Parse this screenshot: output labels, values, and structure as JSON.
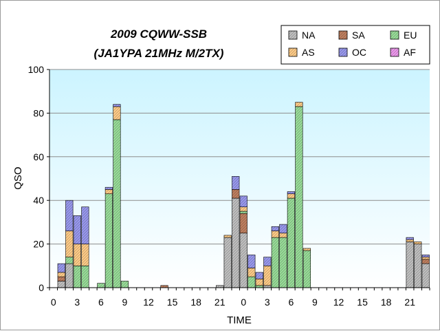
{
  "chart_data": {
    "type": "bar",
    "stacked": true,
    "title": "2009 CQWW-SSB",
    "subtitle": "(JA1YPA  21MHz  M/2TX)",
    "xlabel": "TIME",
    "ylabel": "QSO",
    "ylim": [
      0,
      100
    ],
    "yticks": [
      0,
      20,
      40,
      60,
      80,
      100
    ],
    "xtick_labels": [
      "0",
      "3",
      "6",
      "9",
      "12",
      "15",
      "18",
      "21",
      "0",
      "3",
      "6",
      "9",
      "12",
      "15",
      "18",
      "21"
    ],
    "grid": true,
    "legend_position": "top-right",
    "hours": [
      0,
      1,
      2,
      3,
      4,
      5,
      6,
      7,
      8,
      9,
      10,
      11,
      12,
      13,
      14,
      15,
      16,
      17,
      18,
      19,
      20,
      21,
      22,
      23,
      0,
      1,
      2,
      3,
      4,
      5,
      6,
      7,
      8,
      9,
      10,
      11,
      12,
      13,
      14,
      15,
      16,
      17,
      18,
      19,
      20,
      21,
      22,
      23
    ],
    "series": [
      {
        "name": "NA",
        "color": "#c0c0c0",
        "values": [
          0,
          3,
          11,
          0,
          0,
          0,
          0,
          0,
          0,
          0,
          0,
          0,
          0,
          0,
          0,
          0,
          0,
          0,
          0,
          0,
          0,
          1,
          23,
          41,
          25,
          0,
          0,
          1,
          0,
          0,
          0,
          0,
          0,
          0,
          0,
          0,
          0,
          0,
          0,
          0,
          0,
          0,
          0,
          0,
          0,
          21,
          20,
          11
        ]
      },
      {
        "name": "SA",
        "color": "#c08060",
        "values": [
          0,
          2,
          0,
          0,
          0,
          0,
          0,
          0,
          0,
          0,
          0,
          0,
          0,
          0,
          1,
          0,
          0,
          0,
          0,
          0,
          0,
          0,
          0,
          4,
          9,
          0,
          0,
          0,
          0,
          0,
          0,
          0,
          0,
          0,
          0,
          0,
          0,
          0,
          0,
          0,
          0,
          0,
          0,
          0,
          0,
          0,
          0,
          2
        ]
      },
      {
        "name": "EU",
        "color": "#99dd99",
        "values": [
          0,
          0,
          3,
          10,
          10,
          0,
          2,
          43,
          77,
          3,
          0,
          0,
          0,
          0,
          0,
          0,
          0,
          0,
          0,
          0,
          0,
          0,
          0,
          0,
          1,
          5,
          1,
          0,
          23,
          23,
          41,
          83,
          17,
          0,
          0,
          0,
          0,
          0,
          0,
          0,
          0,
          0,
          0,
          0,
          0,
          0,
          0,
          0
        ]
      },
      {
        "name": "AS",
        "color": "#ffcc88",
        "values": [
          0,
          2,
          12,
          10,
          10,
          0,
          0,
          2,
          6,
          0,
          0,
          0,
          0,
          0,
          0,
          0,
          0,
          0,
          0,
          0,
          0,
          0,
          1,
          0,
          2,
          4,
          3,
          9,
          3,
          2,
          2,
          2,
          1,
          0,
          0,
          0,
          0,
          0,
          0,
          0,
          0,
          0,
          0,
          0,
          0,
          1,
          1,
          1
        ]
      },
      {
        "name": "OC",
        "color": "#9999ee",
        "values": [
          0,
          4,
          14,
          13,
          17,
          0,
          0,
          1,
          1,
          0,
          0,
          0,
          0,
          0,
          0,
          0,
          0,
          0,
          0,
          0,
          0,
          0,
          0,
          6,
          5,
          6,
          3,
          4,
          2,
          4,
          1,
          0,
          0,
          0,
          0,
          0,
          0,
          0,
          0,
          0,
          0,
          0,
          0,
          0,
          0,
          1,
          0,
          1
        ]
      },
      {
        "name": "AF",
        "color": "#ee99ee",
        "values": [
          0,
          0,
          0,
          0,
          0,
          0,
          0,
          0,
          0,
          0,
          0,
          0,
          0,
          0,
          0,
          0,
          0,
          0,
          0,
          0,
          0,
          0,
          0,
          0,
          0,
          0,
          0,
          0,
          0,
          0,
          0,
          0,
          0,
          0,
          0,
          0,
          0,
          0,
          0,
          0,
          0,
          0,
          0,
          0,
          0,
          0,
          0,
          0
        ]
      }
    ]
  }
}
